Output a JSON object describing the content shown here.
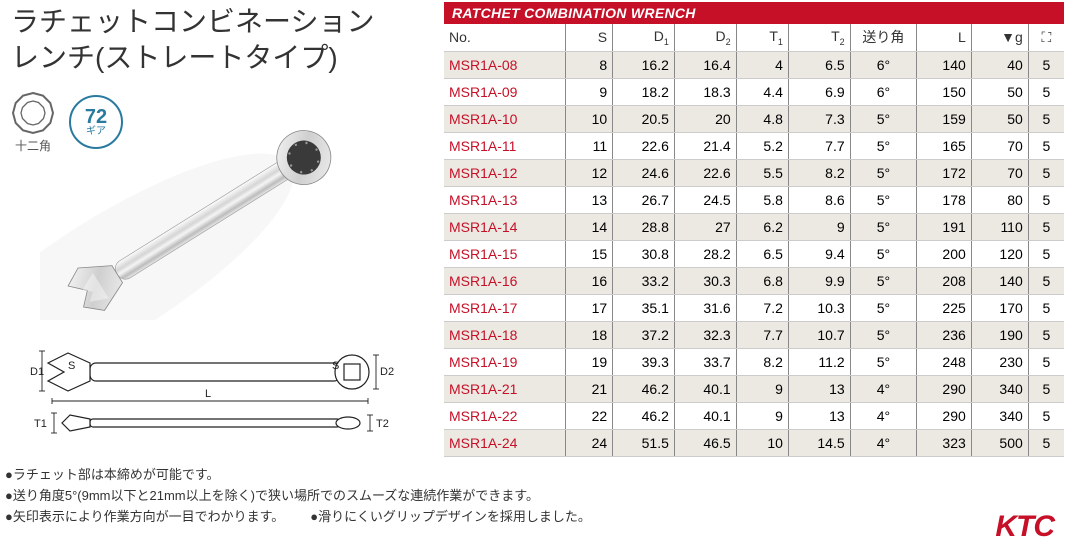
{
  "title_line1": "ラチェットコンビネーション",
  "title_line2": "レンチ(ストレートタイプ)",
  "icon_dodecagon_label": "十二角",
  "icon_gear_num": "72",
  "icon_gear_text": "ギア",
  "header": "RATCHET COMBINATION WRENCH",
  "columns": {
    "no": "No.",
    "s": "S",
    "d1a": "D",
    "d1b": "1",
    "d2a": "D",
    "d2b": "2",
    "t1a": "T",
    "t1b": "1",
    "t2a": "T",
    "t2b": "2",
    "ang": "送り角",
    "L": "L",
    "g": "▼g",
    "box": "⛶"
  },
  "rows": [
    {
      "no": "MSR1A-08",
      "s": 8,
      "d1": 16.2,
      "d2": 16.4,
      "t1": 4,
      "t2": 6.5,
      "ang": "6°",
      "L": 140,
      "g": 40,
      "box": 5
    },
    {
      "no": "MSR1A-09",
      "s": 9,
      "d1": 18.2,
      "d2": 18.3,
      "t1": 4.4,
      "t2": 6.9,
      "ang": "6°",
      "L": 150,
      "g": 50,
      "box": 5
    },
    {
      "no": "MSR1A-10",
      "s": 10,
      "d1": 20.5,
      "d2": 20,
      "t1": 4.8,
      "t2": 7.3,
      "ang": "5°",
      "L": 159,
      "g": 50,
      "box": 5
    },
    {
      "no": "MSR1A-11",
      "s": 11,
      "d1": 22.6,
      "d2": 21.4,
      "t1": 5.2,
      "t2": 7.7,
      "ang": "5°",
      "L": 165,
      "g": 70,
      "box": 5
    },
    {
      "no": "MSR1A-12",
      "s": 12,
      "d1": 24.6,
      "d2": 22.6,
      "t1": 5.5,
      "t2": 8.2,
      "ang": "5°",
      "L": 172,
      "g": 70,
      "box": 5
    },
    {
      "no": "MSR1A-13",
      "s": 13,
      "d1": 26.7,
      "d2": 24.5,
      "t1": 5.8,
      "t2": 8.6,
      "ang": "5°",
      "L": 178,
      "g": 80,
      "box": 5
    },
    {
      "no": "MSR1A-14",
      "s": 14,
      "d1": 28.8,
      "d2": 27,
      "t1": 6.2,
      "t2": 9,
      "ang": "5°",
      "L": 191,
      "g": 110,
      "box": 5
    },
    {
      "no": "MSR1A-15",
      "s": 15,
      "d1": 30.8,
      "d2": 28.2,
      "t1": 6.5,
      "t2": 9.4,
      "ang": "5°",
      "L": 200,
      "g": 120,
      "box": 5
    },
    {
      "no": "MSR1A-16",
      "s": 16,
      "d1": 33.2,
      "d2": 30.3,
      "t1": 6.8,
      "t2": 9.9,
      "ang": "5°",
      "L": 208,
      "g": 140,
      "box": 5
    },
    {
      "no": "MSR1A-17",
      "s": 17,
      "d1": 35.1,
      "d2": 31.6,
      "t1": 7.2,
      "t2": 10.3,
      "ang": "5°",
      "L": 225,
      "g": 170,
      "box": 5
    },
    {
      "no": "MSR1A-18",
      "s": 18,
      "d1": 37.2,
      "d2": 32.3,
      "t1": 7.7,
      "t2": 10.7,
      "ang": "5°",
      "L": 236,
      "g": 190,
      "box": 5
    },
    {
      "no": "MSR1A-19",
      "s": 19,
      "d1": 39.3,
      "d2": 33.7,
      "t1": 8.2,
      "t2": 11.2,
      "ang": "5°",
      "L": 248,
      "g": 230,
      "box": 5
    },
    {
      "no": "MSR1A-21",
      "s": 21,
      "d1": 46.2,
      "d2": 40.1,
      "t1": 9,
      "t2": 13,
      "ang": "4°",
      "L": 290,
      "g": 340,
      "box": 5
    },
    {
      "no": "MSR1A-22",
      "s": 22,
      "d1": 46.2,
      "d2": 40.1,
      "t1": 9,
      "t2": 13,
      "ang": "4°",
      "L": 290,
      "g": 340,
      "box": 5
    },
    {
      "no": "MSR1A-24",
      "s": 24,
      "d1": 51.5,
      "d2": 46.5,
      "t1": 10,
      "t2": 14.5,
      "ang": "4°",
      "L": 323,
      "g": 500,
      "box": 5
    }
  ],
  "bullets": {
    "b1": "●ラチェット部は本締めが可能です。",
    "b2": "●送り角度5°(9mm以下と21mm以上を除く)で狭い場所でのスムーズな連続作業ができます。",
    "b3": "●矢印表示により作業方向が一目でわかります。",
    "b4": "●滑りにくいグリップデザインを採用しました。"
  },
  "brand": "KTC",
  "diagram_labels": {
    "d1": "D1",
    "s_left": "S",
    "s_right": "S",
    "d2": "D2",
    "L": "L",
    "t1": "T1",
    "t2": "T2"
  },
  "style": {
    "brand_color": "#c61028",
    "alt_row_bg": "#ece9e2",
    "teal": "#2a7aa0"
  }
}
